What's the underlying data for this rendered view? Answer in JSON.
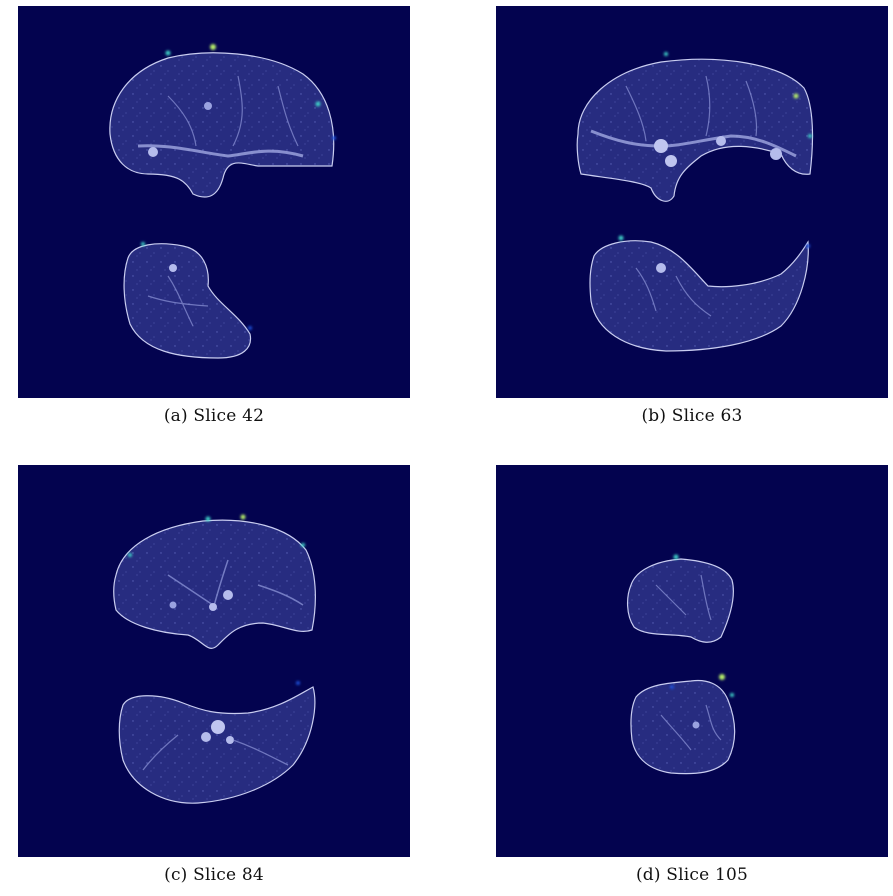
{
  "colors": {
    "background": "#03034f",
    "tissue": "#2a2f86",
    "tissue_edge": "#c9cdf0",
    "vessel": "#a9b0e8",
    "heat_low": "#1b4fd8",
    "heat_mid": "#3fd2c9",
    "heat_high": "#b8f06a"
  },
  "panels": [
    {
      "id": "a",
      "caption": "(a) Slice 42"
    },
    {
      "id": "b",
      "caption": "(b) Slice 63"
    },
    {
      "id": "c",
      "caption": "(c) Slice 84"
    },
    {
      "id": "d",
      "caption": "(d) Slice 105"
    }
  ]
}
